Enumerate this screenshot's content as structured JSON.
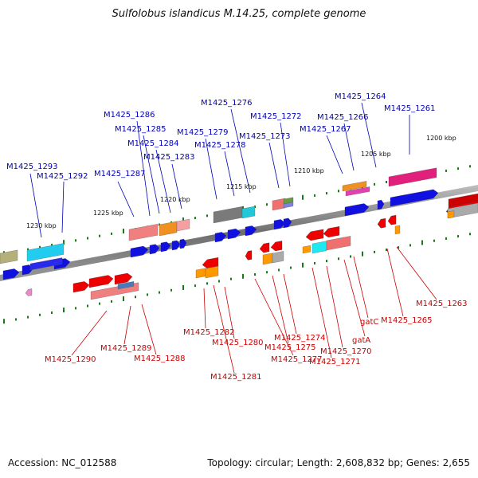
{
  "title": "Sulfolobus islandicus M.14.25, complete genome",
  "footer": {
    "accession": "Accession: NC_012588",
    "summary": "Topology: circular; Length: 2,608,832 bp; Genes: 2,655"
  },
  "colors": {
    "upper_label": "#0000bb",
    "lower_label": "#cc0000",
    "backbone": "#808080",
    "tick": "#1a7a1a"
  },
  "scale_labels": [
    "1230 kbp",
    "1225 kbp",
    "1220 kbp",
    "1215 kbp",
    "1210 kbp",
    "1205 kbp",
    "1200 kbp"
  ],
  "upper_labels": [
    "M1425_1293",
    "M1425_1292",
    "M1425_1287",
    "M1425_1286",
    "M1425_1285",
    "M1425_1284",
    "M1425_1283",
    "M1425_1279",
    "M1425_1278",
    "M1425_1276",
    "M1425_1273",
    "M1425_1272",
    "M1425_1267",
    "M1425_1266",
    "M1425_1264",
    "M1425_1261"
  ],
  "lower_labels": [
    "M1425_1290",
    "M1425_1289",
    "M1425_1288",
    "M1425_1282",
    "M1425_1280",
    "M1425_1281",
    "M1425_1275",
    "M1425_1274",
    "M1425_1277",
    "M1425_1270",
    "M1425_1271",
    "gatA",
    "gatC",
    "M1425_1265",
    "M1425_1263"
  ]
}
